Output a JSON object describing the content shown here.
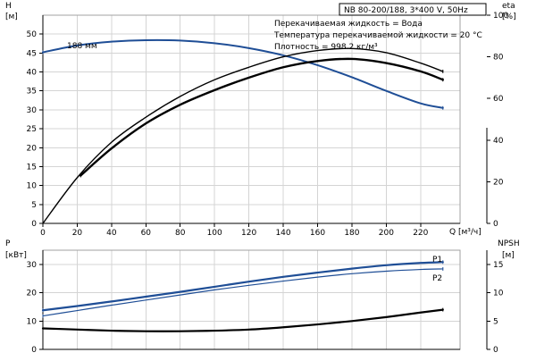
{
  "chart_data": [
    {
      "type": "line",
      "title": "NB 80-200/188, 3*400 V, 50Hz",
      "info_lines": [
        "Перекачиваемая жидкость = Вода",
        "Температура перекачиваемой жидкости = 20 °C",
        "Плотность = 998.2 кг/м³"
      ],
      "xlabel": "Q [м³/ч]",
      "x_ticks": [
        0,
        20,
        40,
        60,
        80,
        100,
        120,
        140,
        160,
        180,
        200,
        220
      ],
      "xlim": [
        0,
        243
      ],
      "left_axis": {
        "label_top": "H",
        "label_unit": "[м]",
        "ticks": [
          0,
          5,
          10,
          15,
          20,
          25,
          30,
          35,
          40,
          45,
          50
        ],
        "ylim": [
          0,
          55
        ]
      },
      "right_axis": {
        "label_top": "eta",
        "label_unit": "[%]",
        "ticks": [
          0,
          20,
          40,
          60,
          80,
          100
        ],
        "ylim": [
          0,
          100
        ]
      },
      "series": [
        {
          "name": "188 мм",
          "axis": "left",
          "color": "#1f4e96",
          "x": [
            0,
            20,
            40,
            60,
            80,
            100,
            120,
            140,
            160,
            180,
            200,
            220,
            233
          ],
          "y": [
            45.2,
            47.0,
            48.0,
            48.4,
            48.3,
            47.6,
            46.3,
            44.4,
            41.8,
            38.6,
            35.0,
            31.7,
            30.5
          ]
        },
        {
          "axis": "right",
          "color": "#000000",
          "x": [
            0,
            20,
            40,
            60,
            80,
            100,
            120,
            140,
            160,
            180,
            200,
            220,
            233
          ],
          "y": [
            0,
            22,
            39,
            51,
            61,
            69,
            75,
            80,
            83,
            84,
            82,
            77,
            73
          ]
        },
        {
          "axis": "right",
          "color": "#000000",
          "x": [
            22,
            40,
            60,
            80,
            100,
            120,
            140,
            160,
            180,
            200,
            220,
            233
          ],
          "y": [
            23,
            36,
            48,
            57,
            64,
            70,
            75,
            78,
            79,
            77,
            73,
            69
          ]
        }
      ]
    },
    {
      "type": "line",
      "xlim": [
        0,
        243
      ],
      "left_axis": {
        "label_top": "P",
        "label_unit": "[кВт]",
        "ticks": [
          0,
          10,
          20,
          30
        ],
        "ylim": [
          0,
          35
        ]
      },
      "right_axis": {
        "label_top": "NPSH",
        "label_unit": "[м]",
        "ticks": [
          0,
          5,
          10,
          15
        ],
        "ylim": [
          0,
          17.5
        ]
      },
      "series": [
        {
          "name": "P1",
          "axis": "left",
          "color": "#1f4e96",
          "x": [
            0,
            20,
            40,
            60,
            80,
            100,
            120,
            140,
            160,
            180,
            200,
            220,
            233
          ],
          "y": [
            13.8,
            15.3,
            16.9,
            18.6,
            20.3,
            22.1,
            23.9,
            25.6,
            27.1,
            28.5,
            29.7,
            30.5,
            30.8
          ]
        },
        {
          "name": "P2",
          "axis": "left",
          "color": "#1f4e96",
          "x": [
            0,
            20,
            40,
            60,
            80,
            100,
            120,
            140,
            160,
            180,
            200,
            220,
            233
          ],
          "y": [
            11.8,
            13.7,
            15.6,
            17.4,
            19.2,
            21.0,
            22.6,
            24.1,
            25.5,
            26.7,
            27.6,
            28.2,
            28.4
          ]
        },
        {
          "axis": "right",
          "color": "#000000",
          "x": [
            0,
            20,
            40,
            60,
            80,
            100,
            120,
            140,
            160,
            180,
            200,
            220,
            233
          ],
          "y": [
            3.7,
            3.5,
            3.3,
            3.2,
            3.2,
            3.3,
            3.5,
            3.9,
            4.4,
            5.0,
            5.7,
            6.5,
            7.0
          ]
        }
      ]
    }
  ]
}
